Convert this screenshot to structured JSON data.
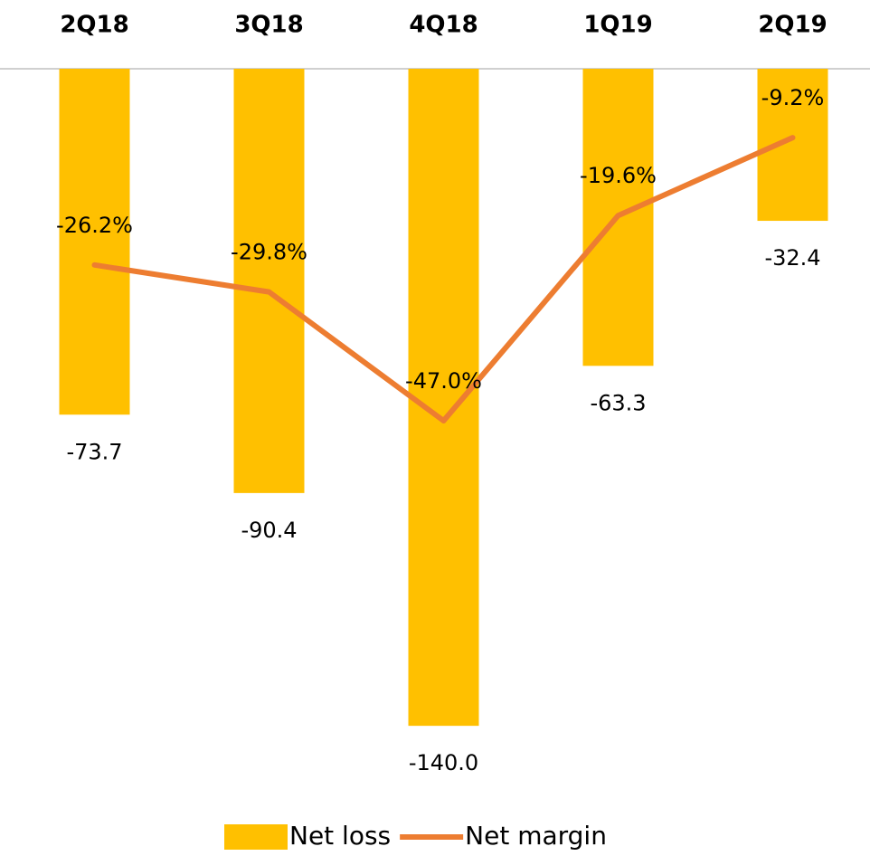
{
  "chart_data": {
    "type": "bar_line",
    "categories": [
      "2Q18",
      "3Q18",
      "4Q18",
      "1Q19",
      "2Q19"
    ],
    "series": [
      {
        "name": "Net loss",
        "type": "bar",
        "color": "#FFC000",
        "values": [
          -73.7,
          -90.4,
          -140,
          -63.3,
          -32.4
        ],
        "value_labels": [
          "-73.7",
          "-90.4",
          "-140.0",
          "-63.3",
          "-32.4"
        ]
      },
      {
        "name": "Net margin",
        "type": "line",
        "axis": "y2",
        "color": "#ED7D31",
        "values": [
          -26.2,
          -29.8,
          -47,
          -19.6,
          -9.2
        ],
        "value_labels": [
          "-26.2%",
          "-29.8%",
          "-47.0%",
          "-19.6%",
          "-9.2%"
        ]
      }
    ],
    "ylim": [
      -150,
      0
    ],
    "y2lim": [
      -94,
      0
    ],
    "legend": "bottom"
  }
}
